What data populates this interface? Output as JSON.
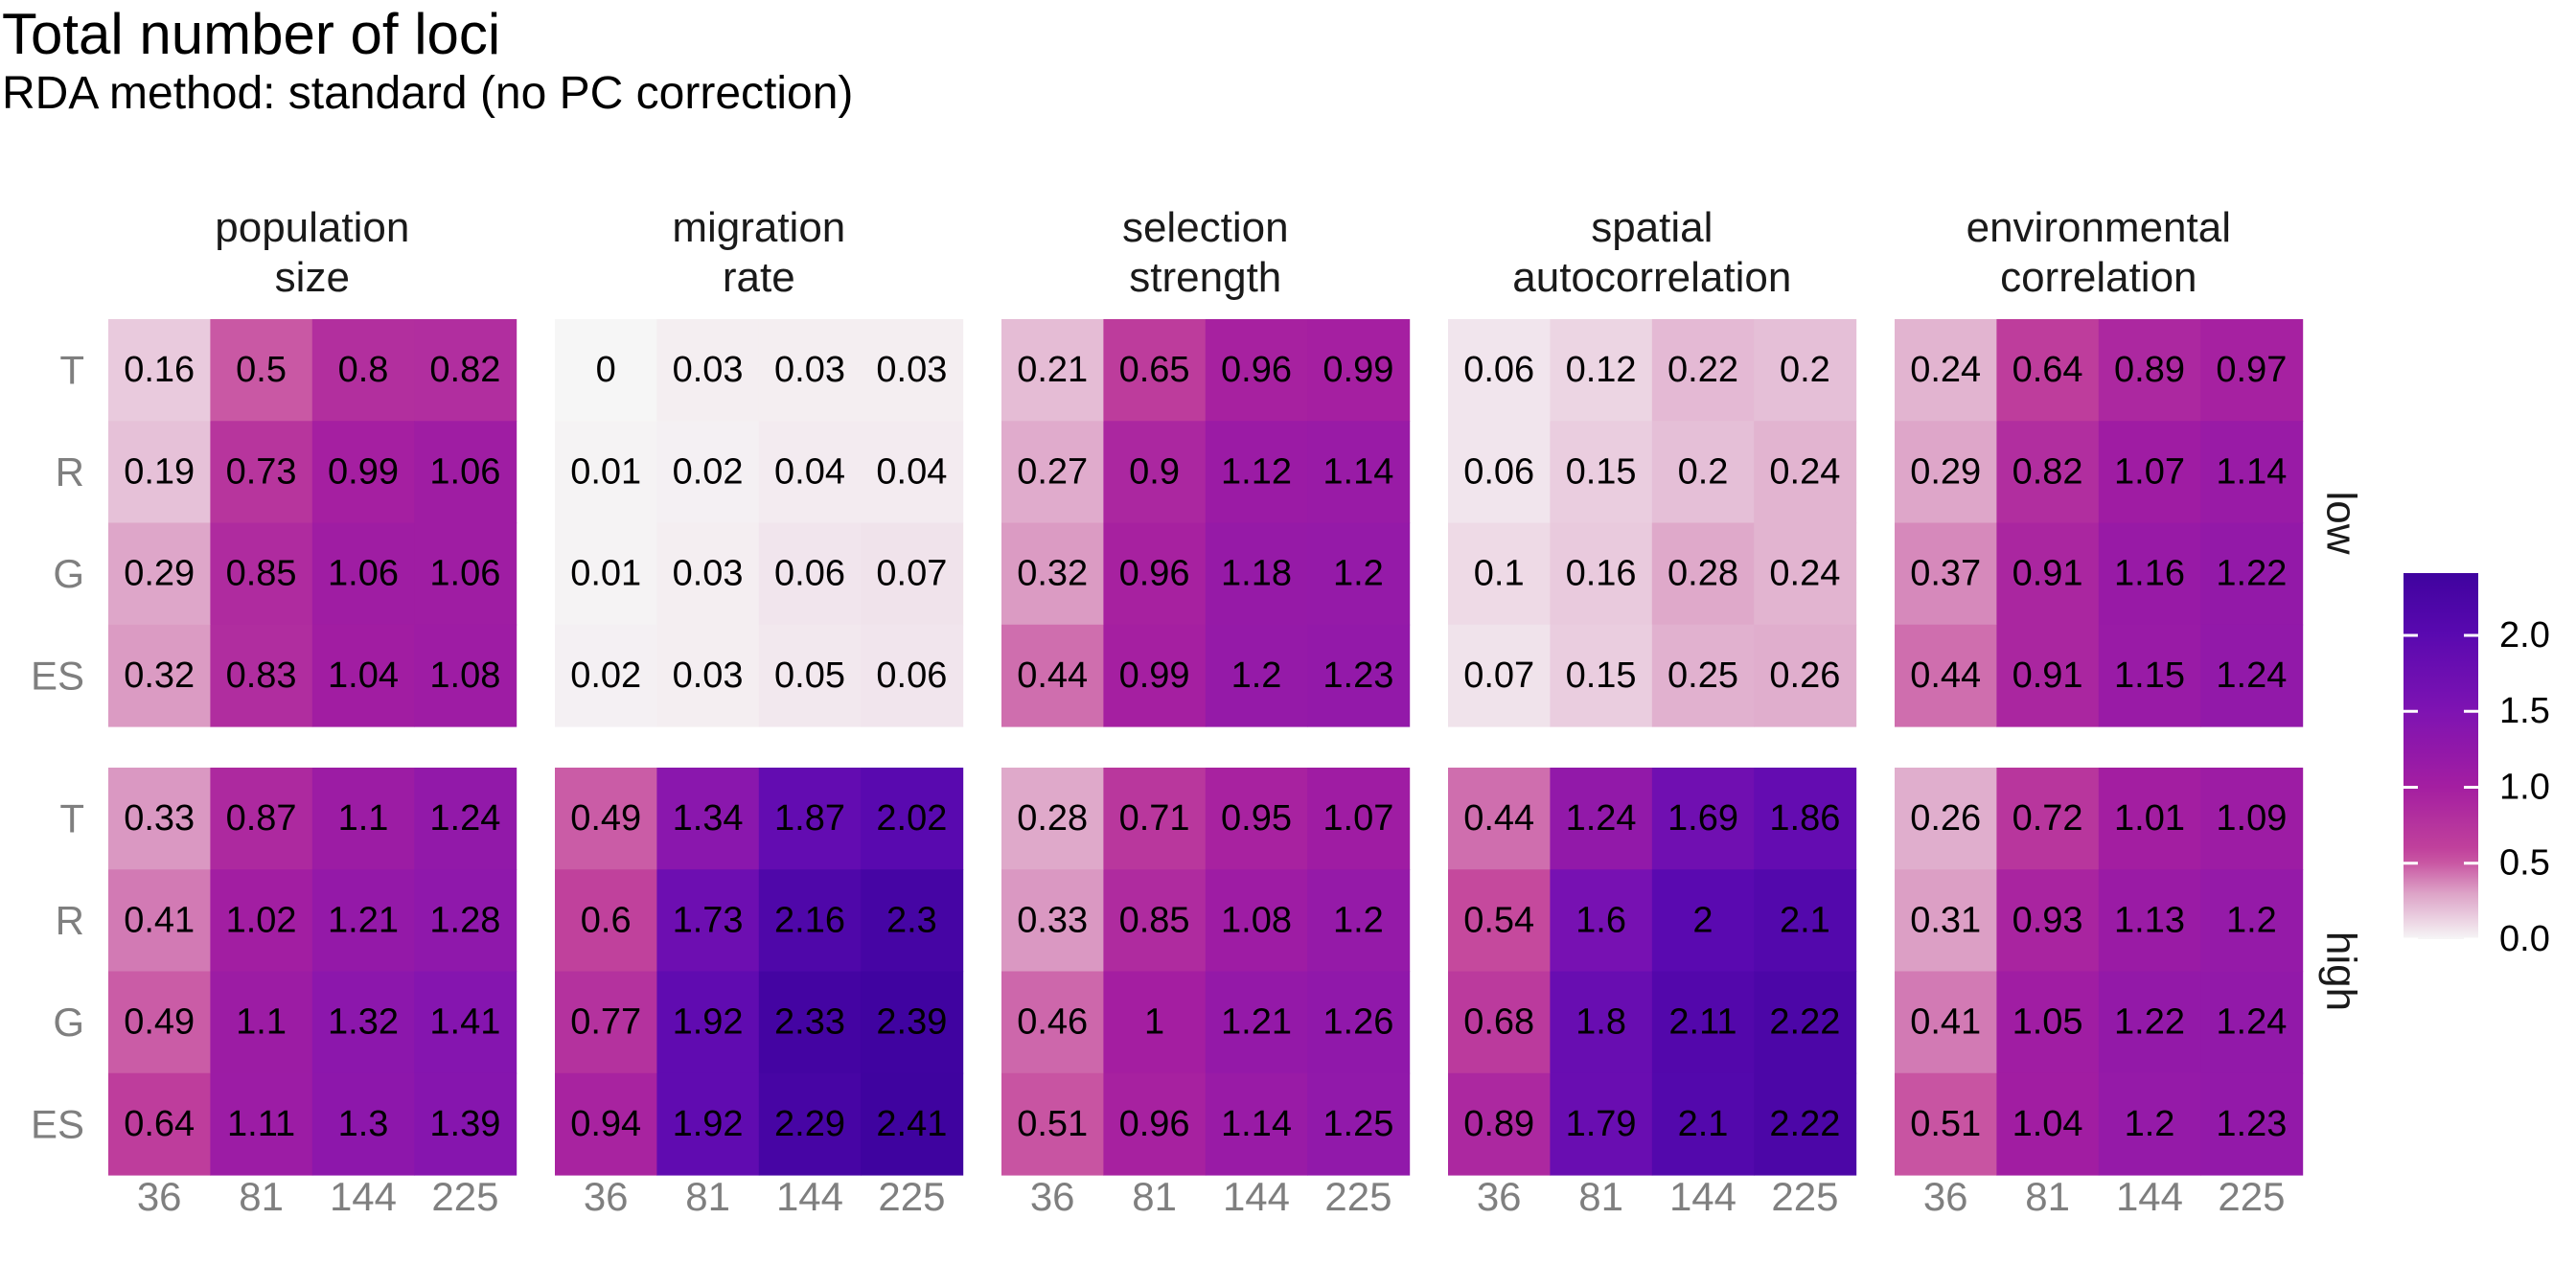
{
  "title": "Total number of loci",
  "subtitle": "RDA method: standard (no PC correction)",
  "chart_data": {
    "type": "heatmap",
    "title": "Total number of loci",
    "subtitle": "RDA method: standard (no PC correction)",
    "x_categories": [
      "36",
      "81",
      "144",
      "225"
    ],
    "y_categories": [
      "T",
      "R",
      "G",
      "ES"
    ],
    "facet_columns": [
      {
        "key": "population_size",
        "label": [
          "population",
          "size"
        ]
      },
      {
        "key": "migration_rate",
        "label": [
          "migration",
          "rate"
        ]
      },
      {
        "key": "selection_strength",
        "label": [
          "selection",
          "strength"
        ]
      },
      {
        "key": "spatial_autocorrelation",
        "label": [
          "spatial",
          "autocorrelation"
        ]
      },
      {
        "key": "environmental_correlation",
        "label": [
          "environmental",
          "correlation"
        ]
      }
    ],
    "facet_rows": [
      "low",
      "high"
    ],
    "color_scale": {
      "min": 0,
      "max": 2.41,
      "ticks": [
        "0.0",
        "0.5",
        "1.0",
        "1.5",
        "2.0"
      ],
      "tick_values": [
        0,
        0.5,
        1.0,
        1.5,
        2.0
      ],
      "stops": [
        {
          "v": 0.0,
          "color": "#f6f6f6"
        },
        {
          "v": 0.3,
          "color": "#dda3c7"
        },
        {
          "v": 0.55,
          "color": "#c4459b"
        },
        {
          "v": 1.0,
          "color": "#a41ea1"
        },
        {
          "v": 1.5,
          "color": "#7e13b2"
        },
        {
          "v": 2.0,
          "color": "#5a09b0"
        },
        {
          "v": 2.41,
          "color": "#3f039f"
        }
      ]
    },
    "values": {
      "low": [
        [
          [
            0.16,
            0.5,
            0.8,
            0.82
          ],
          [
            0.19,
            0.73,
            0.99,
            1.06
          ],
          [
            0.29,
            0.85,
            1.06,
            1.06
          ],
          [
            0.32,
            0.83,
            1.04,
            1.08
          ]
        ],
        [
          [
            0,
            0.03,
            0.03,
            0.03
          ],
          [
            0.01,
            0.02,
            0.04,
            0.04
          ],
          [
            0.01,
            0.03,
            0.06,
            0.07
          ],
          [
            0.02,
            0.03,
            0.05,
            0.06
          ]
        ],
        [
          [
            0.21,
            0.65,
            0.96,
            0.99
          ],
          [
            0.27,
            0.9,
            1.12,
            1.14
          ],
          [
            0.32,
            0.96,
            1.18,
            1.2
          ],
          [
            0.44,
            0.99,
            1.2,
            1.23
          ]
        ],
        [
          [
            0.06,
            0.12,
            0.22,
            0.2
          ],
          [
            0.06,
            0.15,
            0.2,
            0.24
          ],
          [
            0.1,
            0.16,
            0.28,
            0.24
          ],
          [
            0.07,
            0.15,
            0.25,
            0.26
          ]
        ],
        [
          [
            0.24,
            0.64,
            0.89,
            0.97
          ],
          [
            0.29,
            0.82,
            1.07,
            1.14
          ],
          [
            0.37,
            0.91,
            1.16,
            1.22
          ],
          [
            0.44,
            0.91,
            1.15,
            1.24
          ]
        ]
      ],
      "high": [
        [
          [
            0.33,
            0.87,
            1.1,
            1.24
          ],
          [
            0.41,
            1.02,
            1.21,
            1.28
          ],
          [
            0.49,
            1.1,
            1.32,
            1.41
          ],
          [
            0.64,
            1.11,
            1.3,
            1.39
          ]
        ],
        [
          [
            0.49,
            1.34,
            1.87,
            2.02
          ],
          [
            0.6,
            1.73,
            2.16,
            2.3
          ],
          [
            0.77,
            1.92,
            2.33,
            2.39
          ],
          [
            0.94,
            1.92,
            2.29,
            2.41
          ]
        ],
        [
          [
            0.28,
            0.71,
            0.95,
            1.07
          ],
          [
            0.33,
            0.85,
            1.08,
            1.2
          ],
          [
            0.46,
            1,
            1.21,
            1.26
          ],
          [
            0.51,
            0.96,
            1.14,
            1.25
          ]
        ],
        [
          [
            0.44,
            1.24,
            1.69,
            1.86
          ],
          [
            0.54,
            1.6,
            2,
            2.1
          ],
          [
            0.68,
            1.8,
            2.11,
            2.22
          ],
          [
            0.89,
            1.79,
            2.1,
            2.22
          ]
        ],
        [
          [
            0.26,
            0.72,
            1.01,
            1.09
          ],
          [
            0.31,
            0.93,
            1.13,
            1.2
          ],
          [
            0.41,
            1.05,
            1.22,
            1.24
          ],
          [
            0.51,
            1.04,
            1.2,
            1.23
          ]
        ]
      ]
    }
  }
}
